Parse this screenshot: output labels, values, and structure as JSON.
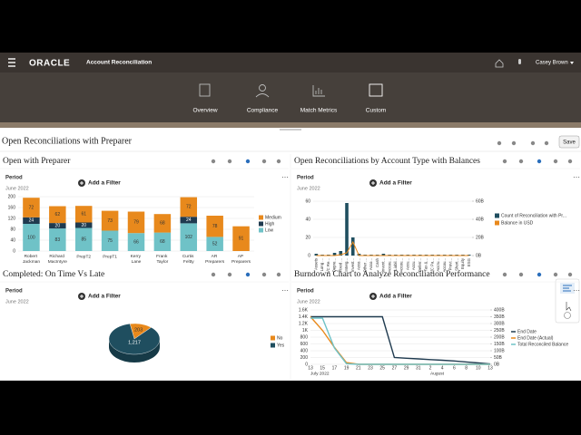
{
  "header": {
    "logo": "ORACLE",
    "app": "Account Reconciliation",
    "user": "Casey Brown"
  },
  "nav": [
    "Overview",
    "Compliance",
    "Match Metrics",
    "Custom"
  ],
  "page": {
    "title": "Open Reconciliations with Preparer",
    "save": "Save"
  },
  "panels": [
    {
      "filter_label": "Period",
      "period": "June 2022",
      "add_filter": "Add a Filter"
    },
    {
      "filter_label": "Period",
      "period": "June 2022",
      "add_filter": "Add a Filter"
    },
    {
      "filter_label": "Period",
      "period": "June 2022",
      "add_filter": "Add a Filter"
    },
    {
      "filter_label": "Period",
      "period": "June 2022",
      "add_filter": "Add a Filter"
    }
  ],
  "chart_data": [
    {
      "type": "stacked-bar",
      "title": "Open with Preparer",
      "categories": [
        "Robert Jackman",
        "Richard MacIntyre",
        "PrepT2",
        "PrepT1",
        "Kerry Lane",
        "Frank Taylor",
        "Curtis Feltty",
        "AR Preparers",
        "AP Preparers"
      ],
      "series": [
        {
          "name": "Low",
          "color": "#6fc2c7",
          "values": [
            100,
            83,
            85,
            75,
            66,
            68,
            102,
            52,
            null
          ]
        },
        {
          "name": "High",
          "color": "#1f3a4f",
          "values": [
            24,
            20,
            20,
            null,
            null,
            null,
            24,
            null,
            null
          ]
        },
        {
          "name": "Medium",
          "color": "#e8891c",
          "values": [
            72,
            62,
            61,
            73,
            79,
            68,
            72,
            78,
            91
          ]
        }
      ],
      "ylim": [
        0,
        200
      ],
      "yticks": [
        0,
        40,
        80,
        120,
        160,
        200
      ],
      "grid": true
    },
    {
      "type": "combo",
      "title": "Open Reconciliations by Account Type with Balances",
      "categories": [
        "Assets",
        "Long ...",
        "L/C Re...",
        "Depre...",
        "Fixed ...",
        "Interg...",
        "Invest...",
        "Acco...",
        "Other ...",
        "Acco...",
        "Cash",
        "Invent...",
        "Accou...",
        "Liabil...",
        "Accou...",
        "Accu...",
        "Accu...",
        "Deferr...",
        "Tax &...",
        "L/C Pa...",
        "Accru...",
        "Accou...",
        "Provi...",
        "Short...",
        "Equity",
        "ESG"
      ],
      "series": [
        {
          "name": "Count of Reconciliation with Pr...",
          "color": "#1f4e5f",
          "values": [
            2,
            1,
            1,
            3,
            5,
            58,
            20,
            2,
            1,
            1,
            1,
            2,
            1,
            1,
            1,
            1,
            1,
            1,
            1,
            1,
            1,
            1,
            1,
            1,
            1,
            1
          ]
        },
        {
          "name": "Balance in USD",
          "color": "#e8891c",
          "axis": "y2",
          "values": [
            0,
            0,
            0,
            0,
            1000000000,
            3000000000,
            15000000000,
            0,
            0,
            0,
            0,
            0,
            0,
            0,
            0,
            0,
            0,
            0,
            0,
            0,
            0,
            0,
            0,
            0,
            0,
            0
          ]
        }
      ],
      "ylim": [
        0,
        60
      ],
      "yticks": [
        0,
        20,
        40,
        60
      ],
      "y2lim": [
        0,
        60000000000
      ],
      "y2ticks": [
        {
          "value": 0,
          "label": "0B"
        },
        {
          "value": 20000000000,
          "label": "20B"
        },
        {
          "value": 40000000000,
          "label": "40B"
        },
        {
          "value": 60000000000,
          "label": "60B"
        }
      ],
      "grid": true
    },
    {
      "type": "pie",
      "title": "Completed: On Time Vs Late",
      "categories": [
        "No",
        "Yes"
      ],
      "values": [
        203,
        1217
      ],
      "value_labels": [
        "203",
        "1,217"
      ],
      "colors": [
        "#e8891c",
        "#1f4e5f"
      ]
    },
    {
      "type": "line",
      "title": "Burndown Chart to Analyze Reconciliation Performance",
      "categories": [
        "13",
        "15",
        "17",
        "19",
        "21",
        "23",
        "25",
        "27",
        "29",
        "31",
        "2",
        "4",
        "6",
        "8",
        "10",
        "13"
      ],
      "months": [
        "July 2022",
        null,
        null,
        null,
        null,
        null,
        null,
        null,
        null,
        null,
        "August",
        null,
        null,
        null,
        null,
        null
      ],
      "series": [
        {
          "name": "End Date",
          "color": "#1f3a4f",
          "values": [
            1400,
            1400,
            1400,
            1400,
            1400,
            1400,
            1400,
            200,
            180,
            160,
            140,
            120,
            100,
            70,
            40,
            10
          ]
        },
        {
          "name": "End Date (Actual)",
          "color": "#e8891c",
          "values": [
            1400,
            1000,
            500,
            50,
            0,
            0,
            0,
            0,
            0,
            0,
            0,
            0,
            0,
            0,
            0,
            0
          ]
        },
        {
          "name": "Total Reconciled Balance",
          "color": "#6fc2c7",
          "axis": "y2",
          "values": [
            340000000000,
            340000000000,
            120000000000,
            5000000000,
            0,
            0,
            0,
            0,
            0,
            0,
            0,
            0,
            0,
            0,
            0,
            0
          ]
        }
      ],
      "ylim": [
        0,
        1600
      ],
      "yticks": [
        0,
        200,
        400,
        600,
        800,
        {
          "value": 1000,
          "label": "1K"
        },
        {
          "value": 1200,
          "label": "1.2K"
        },
        {
          "value": 1400,
          "label": "1.4K"
        },
        {
          "value": 1600,
          "label": "1.6K"
        }
      ],
      "y2lim": [
        0,
        400000000000
      ],
      "y2ticks": [
        {
          "value": 0,
          "label": "0B"
        },
        {
          "value": 50000000000,
          "label": "50B"
        },
        {
          "value": 100000000000,
          "label": "100B"
        },
        {
          "value": 150000000000,
          "label": "150B"
        },
        {
          "value": 200000000000,
          "label": "200B"
        },
        {
          "value": 250000000000,
          "label": "250B"
        },
        {
          "value": 300000000000,
          "label": "300B"
        },
        {
          "value": 350000000000,
          "label": "350B"
        },
        {
          "value": 400000000000,
          "label": "400B"
        }
      ],
      "grid": true
    }
  ]
}
